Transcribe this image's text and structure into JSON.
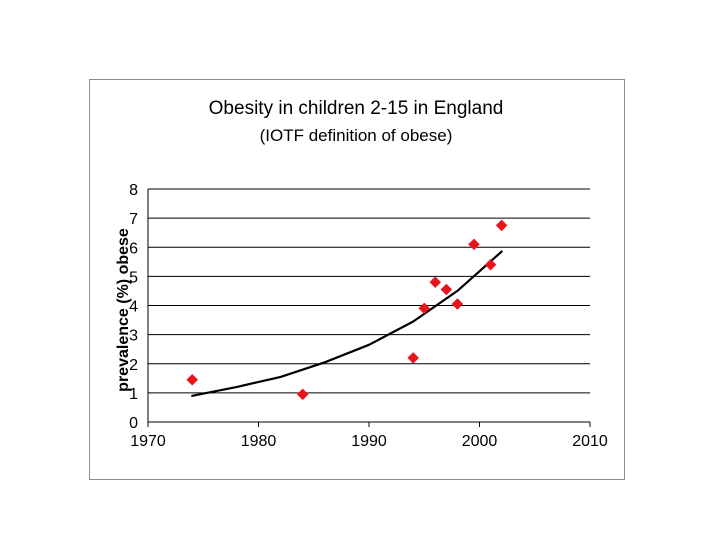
{
  "chart_data": {
    "type": "scatter",
    "title": "Obesity in children 2-15 in England",
    "subtitle": "(IOTF definition of obese)",
    "xlabel": "",
    "ylabel": "prevalence (%) obese",
    "xlim": [
      1970,
      2010
    ],
    "ylim": [
      0,
      8
    ],
    "xticks": [
      "1970",
      "1980",
      "1990",
      "2000",
      "2010"
    ],
    "yticks": [
      "0",
      "1",
      "2",
      "3",
      "4",
      "5",
      "6",
      "7",
      "8"
    ],
    "grid": "horizontal",
    "legend": "none",
    "series": [
      {
        "kind": "points",
        "color": "#e8141b",
        "marker": "diamond",
        "x": [
          1974,
          1984,
          1994,
          1995,
          1996,
          1997,
          1998,
          1999.5,
          2001,
          2002
        ],
        "y": [
          1.45,
          0.95,
          2.2,
          3.9,
          4.8,
          4.55,
          4.05,
          6.1,
          5.4,
          6.75
        ]
      },
      {
        "kind": "trendline",
        "color": "#000000",
        "x": [
          1974,
          1978,
          1982,
          1986,
          1990,
          1994,
          1998,
          2002
        ],
        "y": [
          0.9,
          1.2,
          1.55,
          2.05,
          2.65,
          3.45,
          4.5,
          5.85
        ]
      }
    ]
  }
}
